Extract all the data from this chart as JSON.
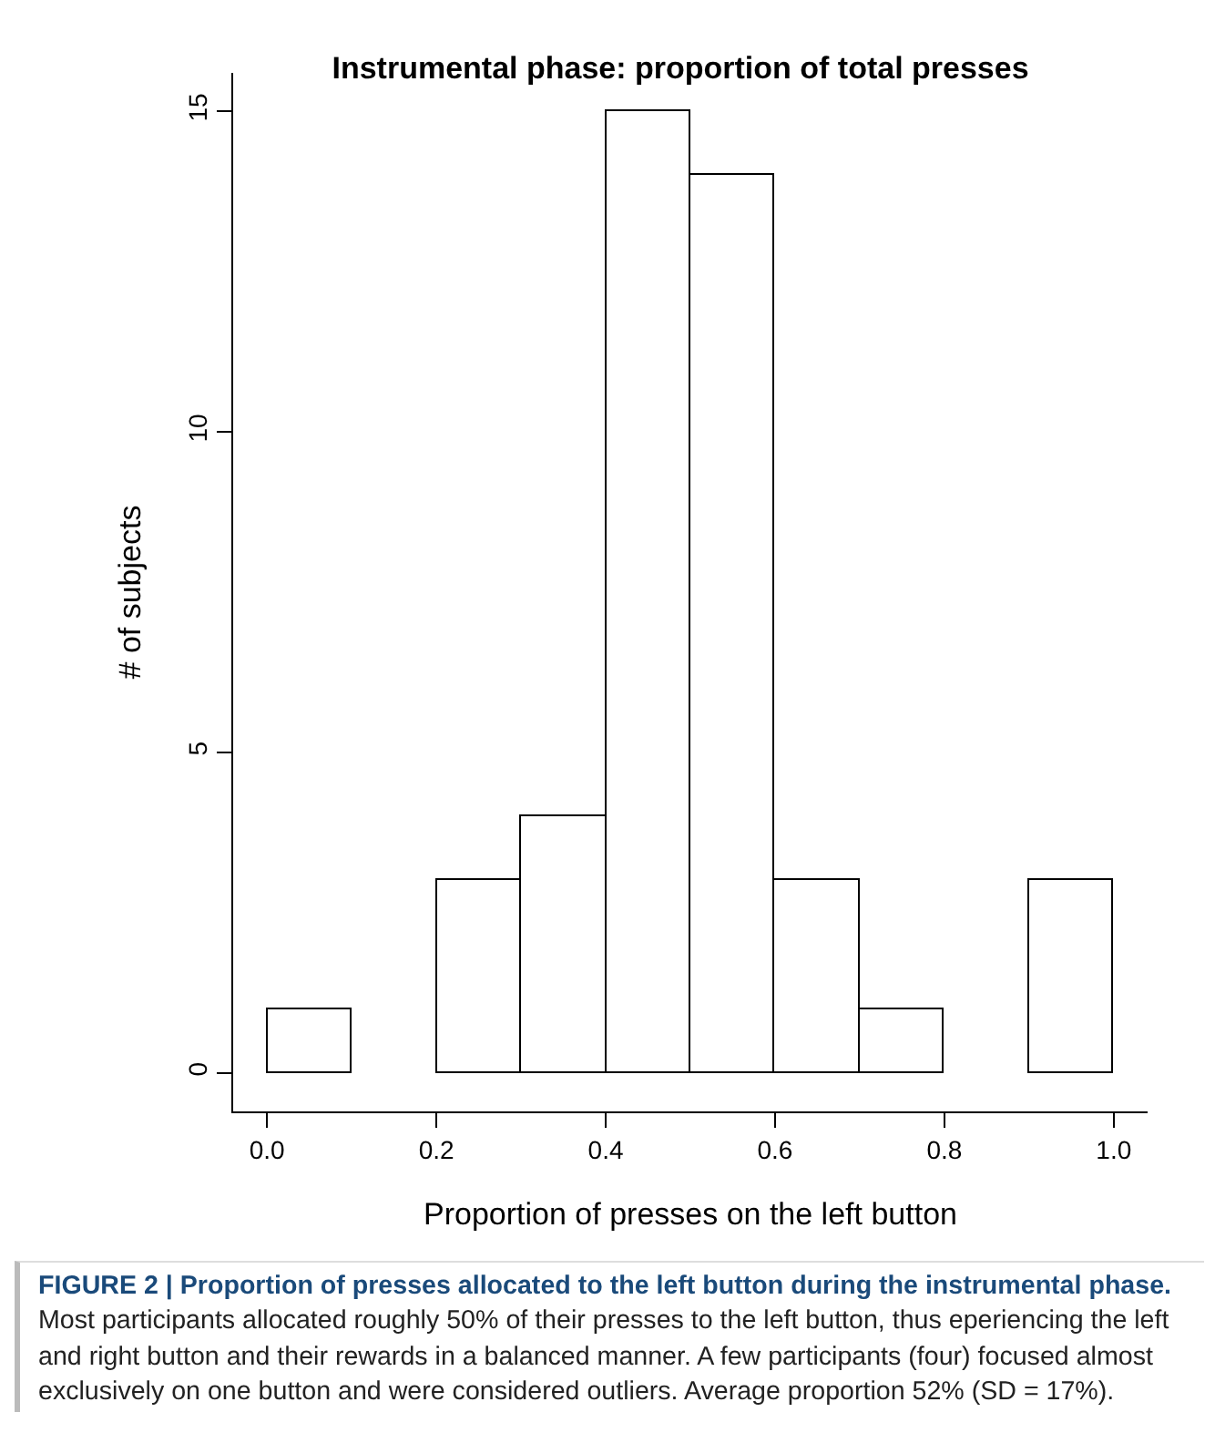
{
  "chart_data": {
    "type": "histogram",
    "title": "Instrumental phase: proportion of total presses",
    "xlabel": "Proportion of presses on the left button",
    "ylabel": "# of subjects",
    "bins": [
      0,
      0.1,
      0.2,
      0.3,
      0.4,
      0.5,
      0.6,
      0.7,
      0.8,
      0.9,
      1.0
    ],
    "values": [
      1,
      0,
      3,
      4,
      15,
      14,
      3,
      1,
      0,
      3
    ],
    "color": "#ffffff",
    "xlim": [
      -0.04,
      1.04
    ],
    "xticks": [
      {
        "value": 0,
        "label": "0.0"
      },
      {
        "value": 0.2,
        "label": "0.2"
      },
      {
        "value": 0.4,
        "label": "0.4"
      },
      {
        "value": 0.6,
        "label": "0.6"
      },
      {
        "value": 0.8,
        "label": "0.8"
      },
      {
        "value": 1,
        "label": "1.0"
      }
    ],
    "ylim": [
      -0.6,
      15.6
    ],
    "yticks": [
      0,
      5,
      10,
      15
    ],
    "grid": false,
    "annotations": [
      "FIGURE 2 | Proportion of presses allocated to the left button during the instrumental phase.",
      "Most participants allocated roughly 50% of their presses to the left button, thus eperiencing the left and right button and their rewards in a balanced manner. A few participants (four) focused almost exclusively on one button and were considered outliers. Average proportion 52% (SD = 17%)."
    ]
  }
}
